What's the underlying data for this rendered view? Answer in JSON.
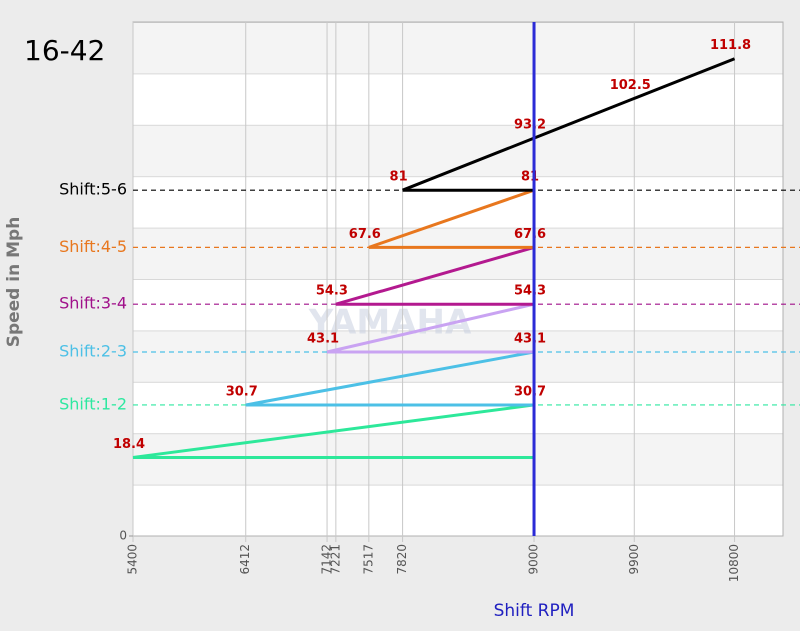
{
  "chart_data": {
    "type": "line",
    "title": "16-42",
    "x_label": "Shift RPM",
    "y_label": "Speed in Mph",
    "watermark": "YAMAHA",
    "xlim": [
      5400,
      11235
    ],
    "ylim": [
      0,
      120.4
    ],
    "xticks": [
      5400,
      6412,
      7142,
      7221,
      7517,
      7820,
      9000,
      9900,
      10800
    ],
    "yticks": [
      0
    ],
    "reference_x": 9000,
    "reference_color": "#2b2bd6",
    "series": [
      {
        "color": "#2de89a",
        "x": [
          5400,
          9000
        ],
        "values": [
          18.4,
          30.7
        ]
      },
      {
        "color": "#4cc0e6",
        "x": [
          6412,
          9000
        ],
        "values": [
          30.7,
          43.1
        ]
      },
      {
        "color": "#c9a3f2",
        "x": [
          7142,
          9000
        ],
        "values": [
          43.1,
          54.3
        ]
      },
      {
        "color": "#b3198f",
        "x": [
          7221,
          9000
        ],
        "values": [
          54.3,
          67.6
        ]
      },
      {
        "color": "#e8771e",
        "x": [
          7517,
          9000
        ],
        "values": [
          67.6,
          81
        ]
      },
      {
        "color": "#000000",
        "x": [
          7820,
          9000,
          9900,
          10800
        ],
        "values": [
          81,
          93.2,
          102.5,
          111.8
        ]
      }
    ],
    "shift_lines": [
      {
        "label": "Shift:1-2",
        "value": 30.7,
        "color": "#2de8a0"
      },
      {
        "label": "Shift:2-3",
        "value": 43.1,
        "color": "#4cc0e6"
      },
      {
        "label": "Shift:3-4",
        "value": 54.3,
        "color": "#a0108a"
      },
      {
        "label": "Shift:4-5",
        "value": 67.6,
        "color": "#e8771e"
      },
      {
        "label": "Shift:5-6",
        "value": 81,
        "color": "#000000"
      }
    ]
  }
}
